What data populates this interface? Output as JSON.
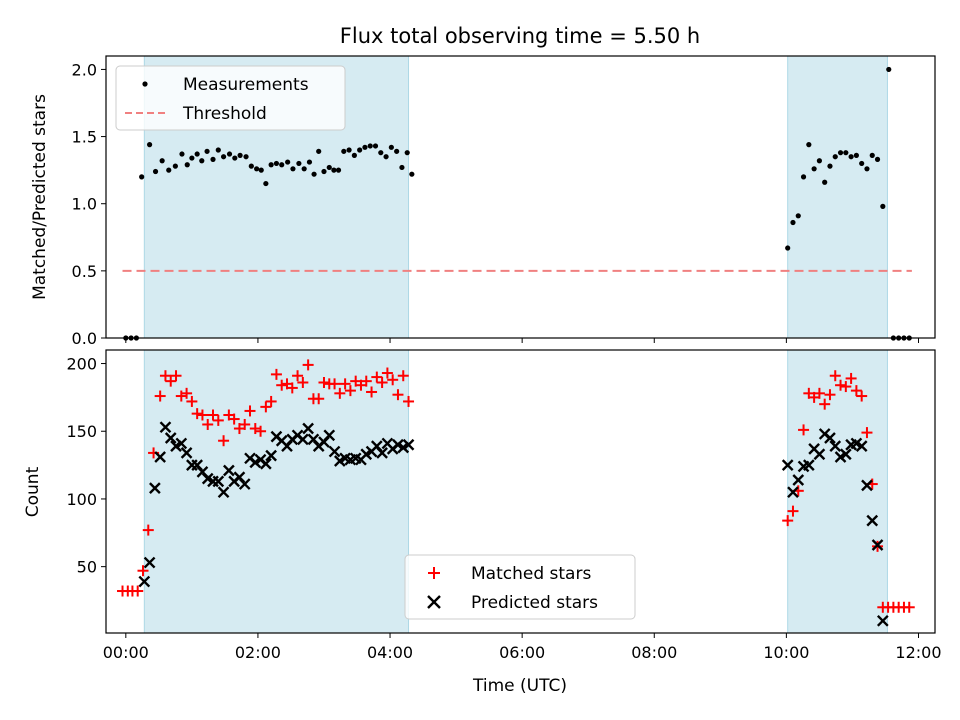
{
  "figure": {
    "title": "Flux total observing time = 5.50 h",
    "xlabel": "Time (UTC)"
  },
  "chart_data": [
    {
      "type": "scatter",
      "panel": "top",
      "ylabel": "Matched/Predicted stars",
      "xlim_hours": [
        -0.3,
        12.25
      ],
      "ylim": [
        0,
        2.1
      ],
      "yticks": [
        "0.0",
        "0.5",
        "1.0",
        "1.5",
        "2.0"
      ],
      "xticks": [
        "00:00",
        "02:00",
        "04:00",
        "06:00",
        "08:00",
        "10:00",
        "12:00"
      ],
      "legend": {
        "placement": "top-left",
        "entries": [
          "Measurements",
          "Threshold"
        ]
      },
      "shaded_intervals_hours": [
        [
          0.28,
          4.28
        ],
        [
          10.02,
          11.53
        ]
      ],
      "threshold": {
        "name": "Threshold",
        "value": 0.5,
        "x_range_hours": [
          -0.05,
          11.9
        ],
        "color": "#f08080"
      },
      "series": [
        {
          "name": "Measurements",
          "color": "#000000",
          "points": [
            [
              0.0,
              0.0
            ],
            [
              0.08,
              0.0
            ],
            [
              0.16,
              0.0
            ],
            [
              0.24,
              1.2
            ],
            [
              0.36,
              1.44
            ],
            [
              0.45,
              1.24
            ],
            [
              0.55,
              1.32
            ],
            [
              0.65,
              1.25
            ],
            [
              0.75,
              1.28
            ],
            [
              0.85,
              1.37
            ],
            [
              0.93,
              1.29
            ],
            [
              1.0,
              1.34
            ],
            [
              1.08,
              1.37
            ],
            [
              1.15,
              1.32
            ],
            [
              1.23,
              1.39
            ],
            [
              1.32,
              1.33
            ],
            [
              1.4,
              1.4
            ],
            [
              1.48,
              1.35
            ],
            [
              1.57,
              1.37
            ],
            [
              1.65,
              1.34
            ],
            [
              1.73,
              1.36
            ],
            [
              1.82,
              1.35
            ],
            [
              1.9,
              1.28
            ],
            [
              1.98,
              1.26
            ],
            [
              2.05,
              1.25
            ],
            [
              2.12,
              1.15
            ],
            [
              2.2,
              1.29
            ],
            [
              2.28,
              1.3
            ],
            [
              2.36,
              1.29
            ],
            [
              2.45,
              1.31
            ],
            [
              2.53,
              1.26
            ],
            [
              2.62,
              1.3
            ],
            [
              2.7,
              1.26
            ],
            [
              2.78,
              1.31
            ],
            [
              2.85,
              1.22
            ],
            [
              2.92,
              1.39
            ],
            [
              3.0,
              1.24
            ],
            [
              3.08,
              1.27
            ],
            [
              3.15,
              1.25
            ],
            [
              3.22,
              1.25
            ],
            [
              3.3,
              1.39
            ],
            [
              3.38,
              1.4
            ],
            [
              3.46,
              1.36
            ],
            [
              3.54,
              1.4
            ],
            [
              3.62,
              1.42
            ],
            [
              3.7,
              1.43
            ],
            [
              3.78,
              1.43
            ],
            [
              3.86,
              1.38
            ],
            [
              3.94,
              1.35
            ],
            [
              4.02,
              1.42
            ],
            [
              4.1,
              1.39
            ],
            [
              4.18,
              1.27
            ],
            [
              4.26,
              1.38
            ],
            [
              4.33,
              1.22
            ],
            [
              10.02,
              0.67
            ],
            [
              10.1,
              0.86
            ],
            [
              10.18,
              0.91
            ],
            [
              10.26,
              1.2
            ],
            [
              10.34,
              1.44
            ],
            [
              10.42,
              1.26
            ],
            [
              10.5,
              1.32
            ],
            [
              10.58,
              1.16
            ],
            [
              10.66,
              1.28
            ],
            [
              10.74,
              1.35
            ],
            [
              10.82,
              1.38
            ],
            [
              10.9,
              1.38
            ],
            [
              10.98,
              1.35
            ],
            [
              11.06,
              1.36
            ],
            [
              11.14,
              1.3
            ],
            [
              11.22,
              1.26
            ],
            [
              11.3,
              1.36
            ],
            [
              11.38,
              1.33
            ],
            [
              11.46,
              0.98
            ],
            [
              11.55,
              2.0
            ],
            [
              11.62,
              0.0
            ],
            [
              11.7,
              0.0
            ],
            [
              11.78,
              0.0
            ],
            [
              11.86,
              0.0
            ]
          ]
        }
      ]
    },
    {
      "type": "scatter",
      "panel": "bottom",
      "ylabel": "Count",
      "xlim_hours": [
        -0.3,
        12.25
      ],
      "ylim": [
        1,
        210
      ],
      "yticks": [
        "50",
        "100",
        "150",
        "200"
      ],
      "xticks": [
        "00:00",
        "02:00",
        "04:00",
        "06:00",
        "08:00",
        "10:00",
        "12:00"
      ],
      "legend": {
        "placement": "bottom-center",
        "entries": [
          "Matched stars",
          "Predicted stars"
        ]
      },
      "shaded_intervals_hours": [
        [
          0.28,
          4.28
        ],
        [
          10.02,
          11.53
        ]
      ],
      "series": [
        {
          "name": "Matched stars",
          "marker": "plus",
          "color": "#ff0000",
          "points": [
            [
              -0.05,
              32
            ],
            [
              0.03,
              32
            ],
            [
              0.1,
              32
            ],
            [
              0.18,
              32
            ],
            [
              0.26,
              47
            ],
            [
              0.34,
              77
            ],
            [
              0.42,
              134
            ],
            [
              0.52,
              176
            ],
            [
              0.6,
              191
            ],
            [
              0.68,
              187
            ],
            [
              0.76,
              191
            ],
            [
              0.84,
              176
            ],
            [
              0.92,
              178
            ],
            [
              1.0,
              172
            ],
            [
              1.08,
              163
            ],
            [
              1.16,
              162
            ],
            [
              1.24,
              155
            ],
            [
              1.32,
              162
            ],
            [
              1.4,
              158
            ],
            [
              1.48,
              143
            ],
            [
              1.56,
              162
            ],
            [
              1.64,
              159
            ],
            [
              1.72,
              152
            ],
            [
              1.8,
              155
            ],
            [
              1.88,
              165
            ],
            [
              1.96,
              152
            ],
            [
              2.04,
              150
            ],
            [
              2.12,
              168
            ],
            [
              2.2,
              172
            ],
            [
              2.28,
              192
            ],
            [
              2.36,
              184
            ],
            [
              2.44,
              185
            ],
            [
              2.52,
              182
            ],
            [
              2.6,
              191
            ],
            [
              2.68,
              186
            ],
            [
              2.76,
              199
            ],
            [
              2.84,
              174
            ],
            [
              2.92,
              174
            ],
            [
              3.0,
              186
            ],
            [
              3.08,
              185
            ],
            [
              3.16,
              185
            ],
            [
              3.24,
              178
            ],
            [
              3.32,
              185
            ],
            [
              3.4,
              180
            ],
            [
              3.48,
              187
            ],
            [
              3.56,
              184
            ],
            [
              3.64,
              187
            ],
            [
              3.72,
              179
            ],
            [
              3.8,
              190
            ],
            [
              3.88,
              186
            ],
            [
              3.96,
              193
            ],
            [
              4.04,
              188
            ],
            [
              4.12,
              177
            ],
            [
              4.2,
              191
            ],
            [
              4.28,
              172
            ],
            [
              10.02,
              84
            ],
            [
              10.1,
              91
            ],
            [
              10.18,
              106
            ],
            [
              10.26,
              151
            ],
            [
              10.34,
              178
            ],
            [
              10.42,
              175
            ],
            [
              10.5,
              178
            ],
            [
              10.58,
              170
            ],
            [
              10.66,
              177
            ],
            [
              10.74,
              191
            ],
            [
              10.82,
              184
            ],
            [
              10.9,
              183
            ],
            [
              10.98,
              189
            ],
            [
              11.06,
              180
            ],
            [
              11.14,
              176
            ],
            [
              11.22,
              149
            ],
            [
              11.3,
              111
            ],
            [
              11.38,
              65
            ],
            [
              11.46,
              20
            ],
            [
              11.54,
              20
            ],
            [
              11.62,
              20
            ],
            [
              11.7,
              20
            ],
            [
              11.78,
              20
            ],
            [
              11.86,
              20
            ]
          ]
        },
        {
          "name": "Predicted stars",
          "marker": "x",
          "color": "#000000",
          "points": [
            [
              0.28,
              39
            ],
            [
              0.36,
              53
            ],
            [
              0.44,
              108
            ],
            [
              0.52,
              131
            ],
            [
              0.6,
              153
            ],
            [
              0.68,
              145
            ],
            [
              0.76,
              139
            ],
            [
              0.84,
              141
            ],
            [
              0.92,
              134
            ],
            [
              1.0,
              125
            ],
            [
              1.08,
              125
            ],
            [
              1.16,
              120
            ],
            [
              1.24,
              115
            ],
            [
              1.32,
              113
            ],
            [
              1.4,
              113
            ],
            [
              1.48,
              105
            ],
            [
              1.56,
              121
            ],
            [
              1.64,
              113
            ],
            [
              1.72,
              116
            ],
            [
              1.8,
              111
            ],
            [
              1.88,
              130
            ],
            [
              1.96,
              127
            ],
            [
              2.04,
              129
            ],
            [
              2.12,
              126
            ],
            [
              2.2,
              132
            ],
            [
              2.28,
              146
            ],
            [
              2.36,
              143
            ],
            [
              2.44,
              139
            ],
            [
              2.52,
              144
            ],
            [
              2.6,
              147
            ],
            [
              2.68,
              144
            ],
            [
              2.76,
              152
            ],
            [
              2.84,
              144
            ],
            [
              2.92,
              139
            ],
            [
              3.0,
              142
            ],
            [
              3.08,
              147
            ],
            [
              3.16,
              135
            ],
            [
              3.24,
              128
            ],
            [
              3.32,
              130
            ],
            [
              3.4,
              129
            ],
            [
              3.48,
              130
            ],
            [
              3.56,
              129
            ],
            [
              3.64,
              133
            ],
            [
              3.72,
              135
            ],
            [
              3.8,
              139
            ],
            [
              3.88,
              134
            ],
            [
              3.96,
              141
            ],
            [
              4.04,
              137
            ],
            [
              4.12,
              140
            ],
            [
              4.2,
              138
            ],
            [
              4.28,
              140
            ],
            [
              10.02,
              125
            ],
            [
              10.1,
              105
            ],
            [
              10.18,
              114
            ],
            [
              10.26,
              124
            ],
            [
              10.34,
              125
            ],
            [
              10.42,
              137
            ],
            [
              10.5,
              133
            ],
            [
              10.58,
              148
            ],
            [
              10.66,
              145
            ],
            [
              10.74,
              139
            ],
            [
              10.82,
              131
            ],
            [
              10.9,
              133
            ],
            [
              10.98,
              140
            ],
            [
              11.06,
              141
            ],
            [
              11.14,
              139
            ],
            [
              11.22,
              110
            ],
            [
              11.3,
              84
            ],
            [
              11.38,
              66
            ],
            [
              11.46,
              10
            ]
          ]
        }
      ]
    }
  ]
}
